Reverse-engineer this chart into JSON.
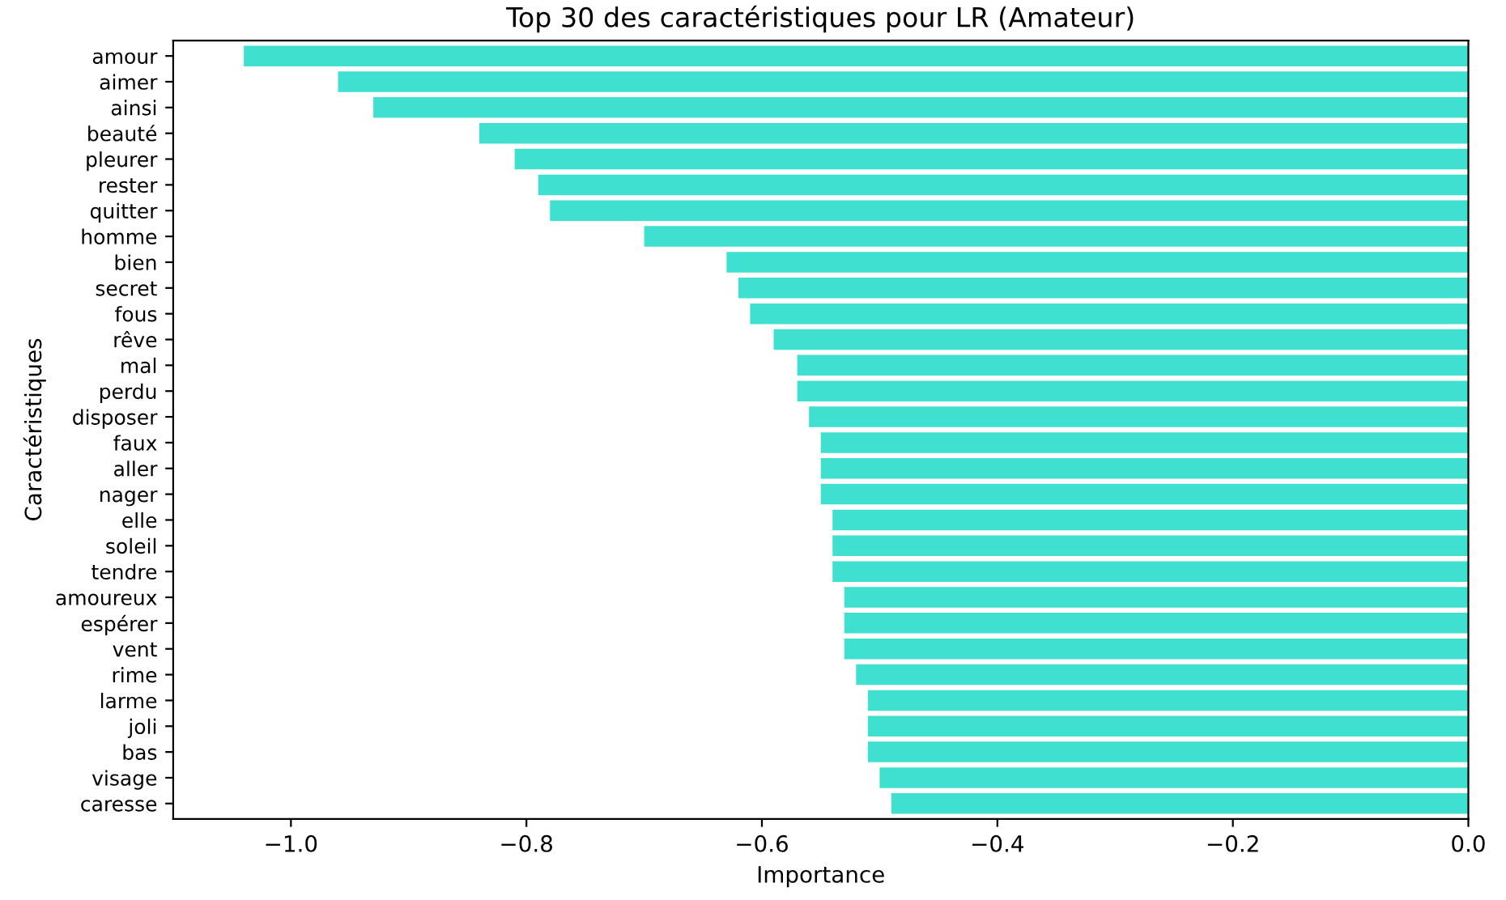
{
  "chart_data": {
    "type": "bar",
    "orientation": "horizontal",
    "title": "Top 30 des caractéristiques pour LR (Amateur)",
    "xlabel": "Importance",
    "ylabel": "Caractéristiques",
    "categories": [
      "amour",
      "aimer",
      "ainsi",
      "beauté",
      "pleurer",
      "rester",
      "quitter",
      "homme",
      "bien",
      "secret",
      "fous",
      "rêve",
      "mal",
      "perdu",
      "disposer",
      "faux",
      "aller",
      "nager",
      "elle",
      "soleil",
      "tendre",
      "amoureux",
      "espérer",
      "vent",
      "rime",
      "larme",
      "joli",
      "bas",
      "visage",
      "caresse"
    ],
    "values": [
      -1.04,
      -0.96,
      -0.93,
      -0.84,
      -0.81,
      -0.79,
      -0.78,
      -0.7,
      -0.63,
      -0.62,
      -0.61,
      -0.59,
      -0.57,
      -0.57,
      -0.56,
      -0.55,
      -0.55,
      -0.55,
      -0.54,
      -0.54,
      -0.54,
      -0.53,
      -0.53,
      -0.53,
      -0.52,
      -0.51,
      -0.51,
      -0.51,
      -0.5,
      -0.49
    ],
    "color": "#40e0d0",
    "xlim": [
      -1.1,
      0.0
    ],
    "xticks": [
      {
        "value": -1.0,
        "label": "−1.0"
      },
      {
        "value": -0.8,
        "label": "−0.8"
      },
      {
        "value": -0.6,
        "label": "−0.6"
      },
      {
        "value": -0.4,
        "label": "−0.4"
      },
      {
        "value": -0.2,
        "label": "−0.2"
      },
      {
        "value": 0.0,
        "label": "0.0"
      }
    ],
    "grid": false,
    "legend": false
  }
}
